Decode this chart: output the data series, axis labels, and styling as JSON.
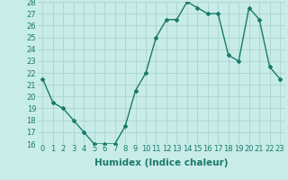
{
  "xlabel": "Humidex (Indice chaleur)",
  "x": [
    0,
    1,
    2,
    3,
    4,
    5,
    6,
    7,
    8,
    9,
    10,
    11,
    12,
    13,
    14,
    15,
    16,
    17,
    18,
    19,
    20,
    21,
    22,
    23
  ],
  "y": [
    21.5,
    19.5,
    19.0,
    18.0,
    17.0,
    16.0,
    16.0,
    16.0,
    17.5,
    20.5,
    22.0,
    25.0,
    26.5,
    26.5,
    28.0,
    27.5,
    27.0,
    27.0,
    23.5,
    23.0,
    27.5,
    26.5,
    22.5,
    21.5
  ],
  "ylim_min": 16,
  "ylim_max": 28,
  "yticks": [
    16,
    17,
    18,
    19,
    20,
    21,
    22,
    23,
    24,
    25,
    26,
    27,
    28
  ],
  "xticks": [
    0,
    1,
    2,
    3,
    4,
    5,
    6,
    7,
    8,
    9,
    10,
    11,
    12,
    13,
    14,
    15,
    16,
    17,
    18,
    19,
    20,
    21,
    22,
    23
  ],
  "line_color": "#1a7a6a",
  "marker": "D",
  "marker_size": 2.0,
  "bg_color": "#c8ece8",
  "grid_color": "#aad4cf",
  "tick_color": "#1a7a6a",
  "tick_label_fontsize": 6.0,
  "xlabel_fontsize": 7.5,
  "xlabel_fontweight": "bold",
  "linewidth": 1.0
}
